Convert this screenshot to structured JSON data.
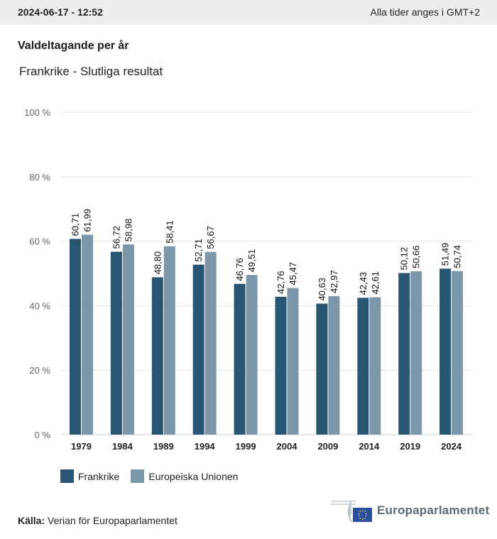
{
  "header": {
    "datetime": "2024-06-17 - 12:52",
    "timezone_note": "Alla tider anges i GMT+2"
  },
  "title": "Valdeltagande per år",
  "subtitle": "Frankrike - Slutliga resultat",
  "colors": {
    "frankrike": "#275572",
    "eu": "#7c97a9",
    "grid": "#e3e3e3",
    "axis": "#c5d2db"
  },
  "chart_data": {
    "type": "bar",
    "title": "Valdeltagande per år",
    "subtitle": "Frankrike - Slutliga resultat",
    "xlabel": "",
    "ylabel": "",
    "ylim": [
      0,
      100
    ],
    "yticks": [
      0,
      20,
      40,
      60,
      80,
      100
    ],
    "ytick_labels": [
      "0 %",
      "20 %",
      "40 %",
      "60 %",
      "80 %",
      "100 %"
    ],
    "grid": true,
    "legend_position": "bottom-left",
    "categories": [
      "1979",
      "1984",
      "1989",
      "1994",
      "1999",
      "2004",
      "2009",
      "2014",
      "2019",
      "2024"
    ],
    "series": [
      {
        "name": "Frankrike",
        "values": [
          60.71,
          56.72,
          48.8,
          52.71,
          46.76,
          42.76,
          40.63,
          42.43,
          50.12,
          51.49
        ],
        "labels": [
          "60,71",
          "56,72",
          "48,80",
          "52,71",
          "46,76",
          "42,76",
          "40,63",
          "42,43",
          "50,12",
          "51,49"
        ]
      },
      {
        "name": "Europeiska Unionen",
        "values": [
          61.99,
          58.98,
          58.41,
          56.67,
          49.51,
          45.47,
          42.97,
          42.61,
          50.66,
          50.74
        ],
        "labels": [
          "61,99",
          "58,98",
          "58,41",
          "56,67",
          "49,51",
          "45,47",
          "42,97",
          "42,61",
          "50,66",
          "50,74"
        ]
      }
    ]
  },
  "legend": {
    "items": [
      {
        "label": "Frankrike"
      },
      {
        "label": "Europeiska Unionen"
      }
    ]
  },
  "source": {
    "label": "Källa:",
    "text": "Verian för Europaparlamentet"
  },
  "logo": {
    "name": "Europaparlamentet"
  }
}
